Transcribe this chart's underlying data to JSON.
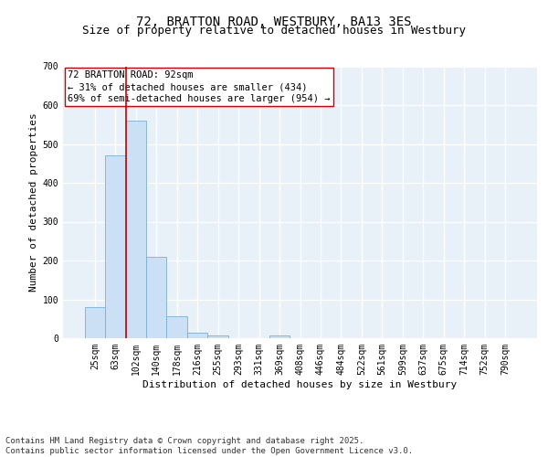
{
  "title_line1": "72, BRATTON ROAD, WESTBURY, BA13 3ES",
  "title_line2": "Size of property relative to detached houses in Westbury",
  "xlabel": "Distribution of detached houses by size in Westbury",
  "ylabel": "Number of detached properties",
  "categories": [
    "25sqm",
    "63sqm",
    "102sqm",
    "140sqm",
    "178sqm",
    "216sqm",
    "255sqm",
    "293sqm",
    "331sqm",
    "369sqm",
    "408sqm",
    "446sqm",
    "484sqm",
    "522sqm",
    "561sqm",
    "599sqm",
    "637sqm",
    "675sqm",
    "714sqm",
    "752sqm",
    "790sqm"
  ],
  "values": [
    80,
    470,
    560,
    210,
    57,
    15,
    7,
    0,
    0,
    7,
    0,
    0,
    0,
    0,
    0,
    0,
    0,
    0,
    0,
    0,
    0
  ],
  "bar_color": "#cce0f5",
  "bar_edge_color": "#7bafd4",
  "vline_x": 1.5,
  "vline_color": "#cc0000",
  "annotation_text": "72 BRATTON ROAD: 92sqm\n← 31% of detached houses are smaller (434)\n69% of semi-detached houses are larger (954) →",
  "annotation_box_color": "#ffffff",
  "annotation_box_edge": "#cc0000",
  "ylim": [
    0,
    700
  ],
  "yticks": [
    0,
    100,
    200,
    300,
    400,
    500,
    600,
    700
  ],
  "background_color": "#e8f0f8",
  "grid_color": "#ffffff",
  "footer_text": "Contains HM Land Registry data © Crown copyright and database right 2025.\nContains public sector information licensed under the Open Government Licence v3.0.",
  "title_fontsize": 10,
  "subtitle_fontsize": 9,
  "axis_label_fontsize": 8,
  "tick_fontsize": 7,
  "annotation_fontsize": 7.5,
  "footer_fontsize": 6.5
}
